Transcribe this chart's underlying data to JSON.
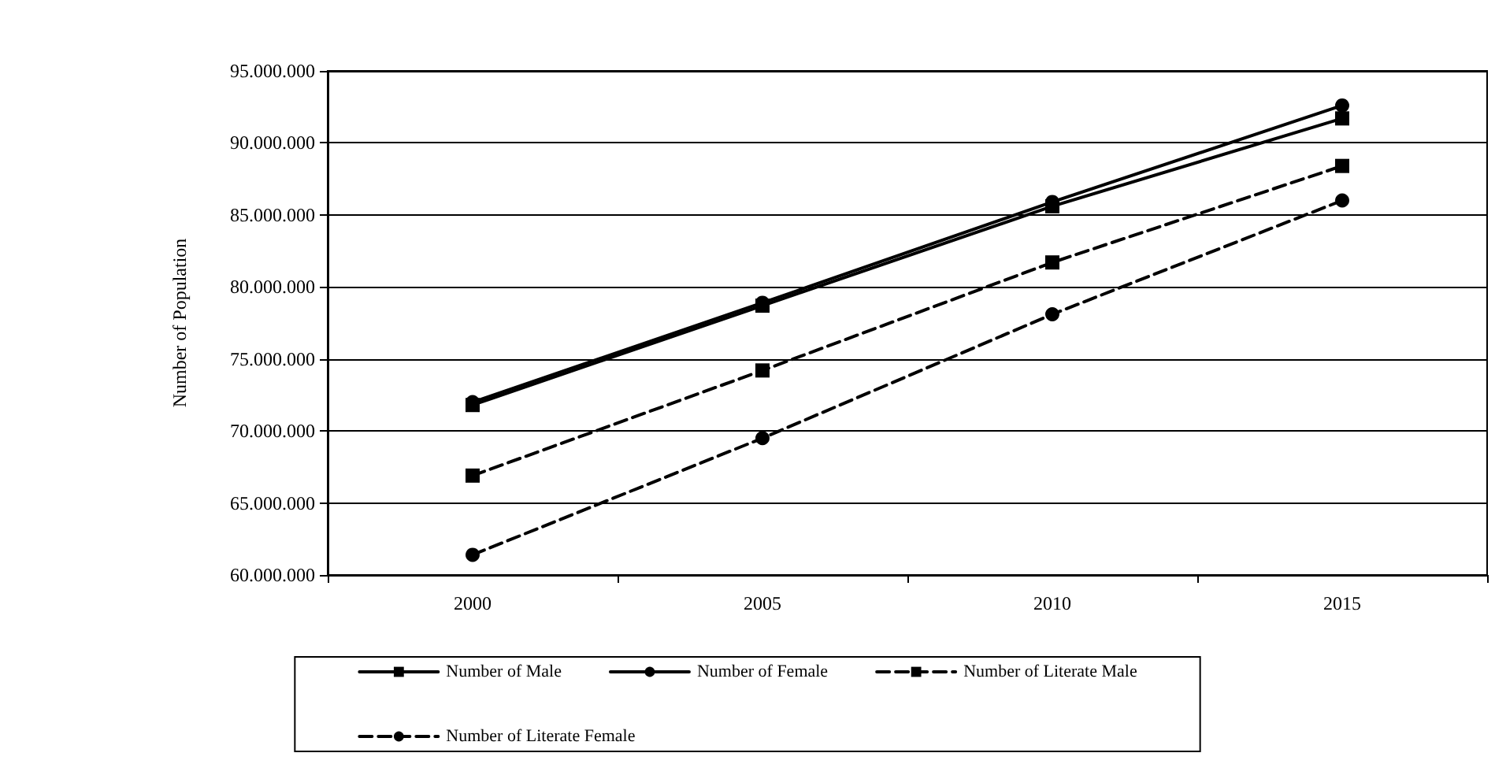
{
  "chart_data": {
    "type": "line",
    "ylabel": "Number of Population",
    "categories": [
      "2000",
      "2005",
      "2010",
      "2015"
    ],
    "series": [
      {
        "name": "Number of Male",
        "color": "#000000",
        "marker": "square",
        "line_style": "solid",
        "values": [
          71800000,
          78700000,
          85600000,
          91700000
        ]
      },
      {
        "name": "Number of Female",
        "color": "#000000",
        "marker": "circle",
        "line_style": "solid",
        "values": [
          72000000,
          78900000,
          85900000,
          92600000
        ]
      },
      {
        "name": "Number of Literate Male",
        "color": "#000000",
        "marker": "square",
        "line_style": "dashed",
        "values": [
          66900000,
          74200000,
          81700000,
          88400000
        ]
      },
      {
        "name": "Number of Literate Female",
        "color": "#000000",
        "marker": "circle",
        "line_style": "dashed",
        "values": [
          61400000,
          69500000,
          78100000,
          86000000
        ]
      }
    ],
    "ylim": [
      60000000,
      95000000
    ],
    "yticks": [
      {
        "value": 60000000,
        "label": "60.000.000"
      },
      {
        "value": 65000000,
        "label": "65.000.000"
      },
      {
        "value": 70000000,
        "label": "70.000.000"
      },
      {
        "value": 75000000,
        "label": "75.000.000"
      },
      {
        "value": 80000000,
        "label": "80.000.000"
      },
      {
        "value": 85000000,
        "label": "85.000.000"
      },
      {
        "value": 90000000,
        "label": "90.000.000"
      },
      {
        "value": 95000000,
        "label": "95.000.000"
      }
    ],
    "grid": "y",
    "legend": "bottom"
  }
}
